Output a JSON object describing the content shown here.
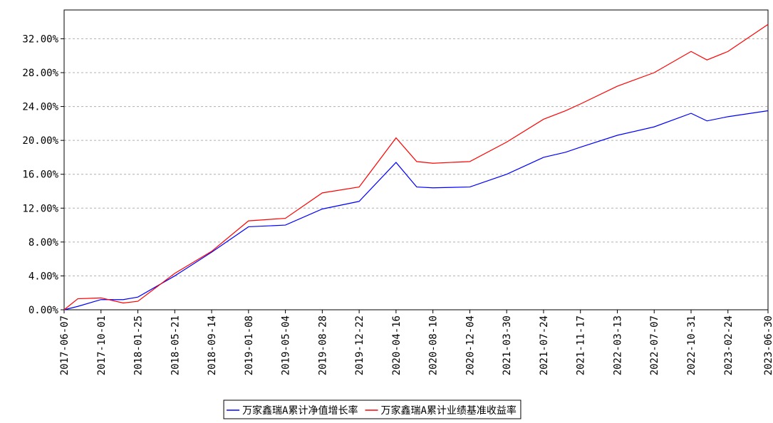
{
  "chart_data": {
    "type": "line",
    "x": [
      "2017-06-07",
      "2017-07-20",
      "2017-10-01",
      "2017-12-10",
      "2018-01-25",
      "2018-05-21",
      "2018-09-14",
      "2019-01-08",
      "2019-05-04",
      "2019-08-28",
      "2019-12-22",
      "2020-04-16",
      "2020-06-20",
      "2020-08-10",
      "2020-12-04",
      "2021-03-30",
      "2021-07-24",
      "2021-10-01",
      "2021-11-17",
      "2022-03-13",
      "2022-07-07",
      "2022-10-31",
      "2022-12-20",
      "2023-02-24",
      "2023-06-30"
    ],
    "series": [
      {
        "name": "万家鑫瑞A累计净值增长率",
        "color": "#0000ff",
        "values": [
          0,
          0.4,
          1.2,
          1.2,
          1.5,
          4.0,
          6.8,
          9.8,
          10.0,
          11.9,
          12.8,
          17.4,
          14.5,
          14.4,
          14.5,
          16.0,
          18.0,
          18.6,
          19.2,
          20.6,
          21.6,
          23.2,
          22.3,
          22.8,
          23.5
        ]
      },
      {
        "name": "万家鑫瑞A累计业绩基准收益率",
        "color": "#ff0000",
        "values": [
          0,
          1.3,
          1.4,
          0.8,
          1.0,
          4.3,
          6.9,
          10.5,
          10.8,
          13.8,
          14.5,
          20.3,
          17.5,
          17.3,
          17.5,
          19.8,
          22.5,
          23.5,
          24.3,
          26.4,
          28.0,
          30.5,
          29.5,
          30.5,
          33.7
        ]
      }
    ],
    "xlim": [
      "2017-06-07",
      "2023-06-30"
    ],
    "xticks": [
      "2017-06-07",
      "2017-10-01",
      "2018-01-25",
      "2018-05-21",
      "2018-09-14",
      "2019-01-08",
      "2019-05-04",
      "2019-08-28",
      "2019-12-22",
      "2020-04-16",
      "2020-08-10",
      "2020-12-04",
      "2021-03-30",
      "2021-07-24",
      "2021-11-17",
      "2022-03-13",
      "2022-07-07",
      "2022-10-31",
      "2023-02-24",
      "2023-06-30"
    ],
    "ylim": [
      0,
      35.4
    ],
    "yticks": [
      {
        "value": 0,
        "label": "0.00%"
      },
      {
        "value": 4,
        "label": "4.00%"
      },
      {
        "value": 8,
        "label": "8.00%"
      },
      {
        "value": 12,
        "label": "12.00%"
      },
      {
        "value": 16,
        "label": "16.00%"
      },
      {
        "value": 20,
        "label": "20.00%"
      },
      {
        "value": 24,
        "label": "24.00%"
      },
      {
        "value": 28,
        "label": "28.00%"
      },
      {
        "value": 32,
        "label": "32.00%"
      }
    ],
    "grid": true
  }
}
